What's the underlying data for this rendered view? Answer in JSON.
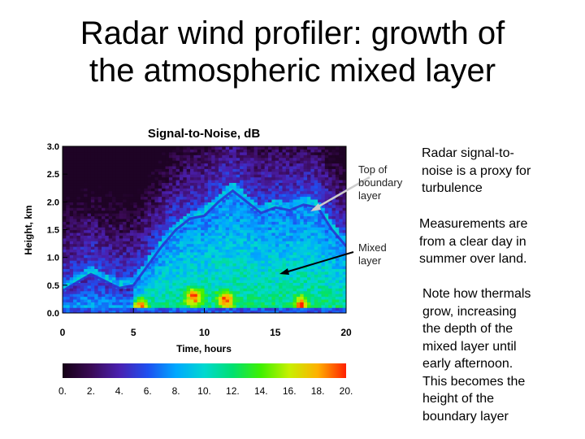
{
  "slide": {
    "title_line1": "Radar wind profiler: growth of",
    "title_line2": "the atmospheric mixed layer"
  },
  "annotations": {
    "top_of_boundary_layer": [
      "Top of",
      "boundary",
      "layer"
    ],
    "mixed_layer": [
      "Mixed",
      "layer"
    ]
  },
  "notes": [
    [
      "Radar signal-to-",
      "noise is a proxy for",
      "turbulence"
    ],
    [
      "Measurements are",
      "from a clear day in",
      "summer over land."
    ],
    [
      "Note how thermals",
      "grow, increasing",
      "the depth of the",
      "mixed layer until",
      "early afternoon.",
      "This becomes the",
      "height of the",
      "boundary layer"
    ]
  ],
  "chart_data": {
    "type": "heatmap",
    "title": "Signal-to-Noise, dB",
    "xlabel": "Time, hours",
    "ylabel": "Height, km",
    "xlim": [
      0,
      20
    ],
    "ylim": [
      0,
      3
    ],
    "x_ticks": [
      "0",
      "5",
      "10",
      "15",
      "20"
    ],
    "y_ticks": [
      "0.0",
      "0.5",
      "1.0",
      "1.5",
      "2.0",
      "2.5",
      "3.0"
    ],
    "colorbar": {
      "range": [
        0,
        20
      ],
      "ticks": [
        "0.",
        "2.",
        "4.",
        "6.",
        "8.",
        "10.",
        "12.",
        "14.",
        "16.",
        "18.",
        "20."
      ],
      "colors": [
        "#150015",
        "#3a0a55",
        "#4a20b0",
        "#1e4ff0",
        "#00a8ff",
        "#00d8d0",
        "#00e070",
        "#40f000",
        "#c8f000",
        "#ffb000",
        "#ff2000"
      ]
    },
    "boundary_layer_top_km": [
      {
        "time": 0,
        "height": 0.4
      },
      {
        "time": 2,
        "height": 0.7
      },
      {
        "time": 4,
        "height": 0.45
      },
      {
        "time": 5,
        "height": 0.5
      },
      {
        "time": 6,
        "height": 0.85
      },
      {
        "time": 7,
        "height": 1.2
      },
      {
        "time": 8,
        "height": 1.5
      },
      {
        "time": 9,
        "height": 1.7
      },
      {
        "time": 10,
        "height": 1.75
      },
      {
        "time": 11,
        "height": 2.0
      },
      {
        "time": 12,
        "height": 2.2
      },
      {
        "time": 13,
        "height": 2.0
      },
      {
        "time": 14,
        "height": 1.8
      },
      {
        "time": 15,
        "height": 1.9
      },
      {
        "time": 16,
        "height": 1.85
      },
      {
        "time": 17,
        "height": 1.95
      },
      {
        "time": 18,
        "height": 1.9
      },
      {
        "time": 19,
        "height": 1.5
      },
      {
        "time": 20,
        "height": 1.2
      }
    ]
  }
}
